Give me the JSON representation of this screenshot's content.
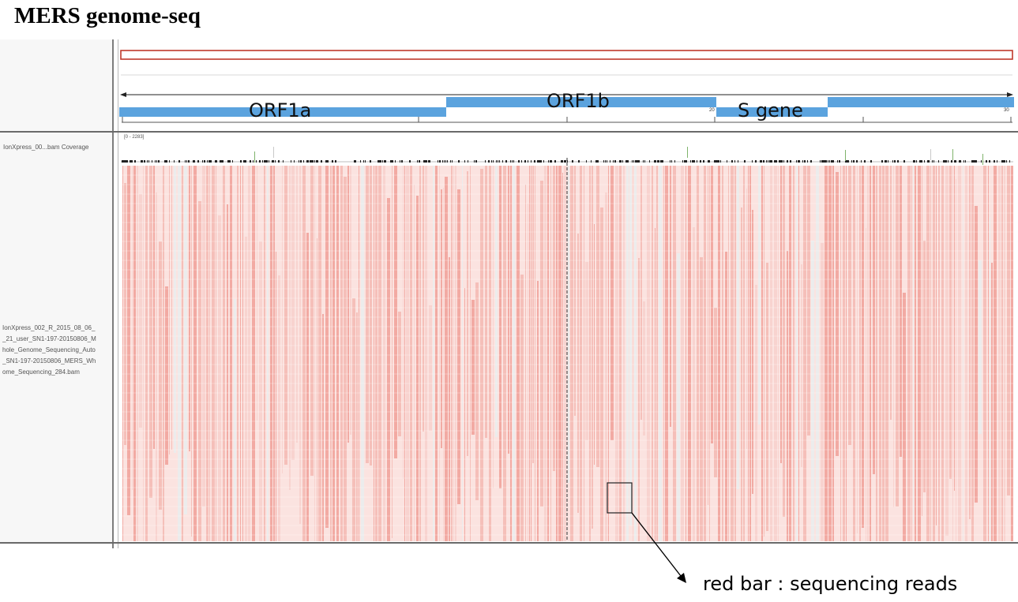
{
  "title": "MERS genome-seq",
  "tracks": {
    "coverage_label": "IonXpress_00...bam Coverage",
    "coverage_range": "[0 - 2283]",
    "alignment_label_lines": [
      "IonXpress_002_R_2015_08_06_",
      "_21_user_SN1-197-20150806_M",
      "hole_Genome_Sequencing_Auto",
      "_SN1-197-20150806_MERS_Wh",
      "ome_Sequencing_284.bam"
    ]
  },
  "ruler": {
    "ticks": [
      "20",
      "30"
    ]
  },
  "genes": {
    "orf1a": "ORF1a",
    "orf1b": "ORF1b",
    "s_gene": "S gene"
  },
  "annotation": {
    "text": "red bar : sequencing reads"
  },
  "colors": {
    "gene_feature": "#5ba3de",
    "read_fill": "#f2b4ae",
    "reference_line": "#c0392b",
    "panel_border": "#7d7d7d"
  }
}
